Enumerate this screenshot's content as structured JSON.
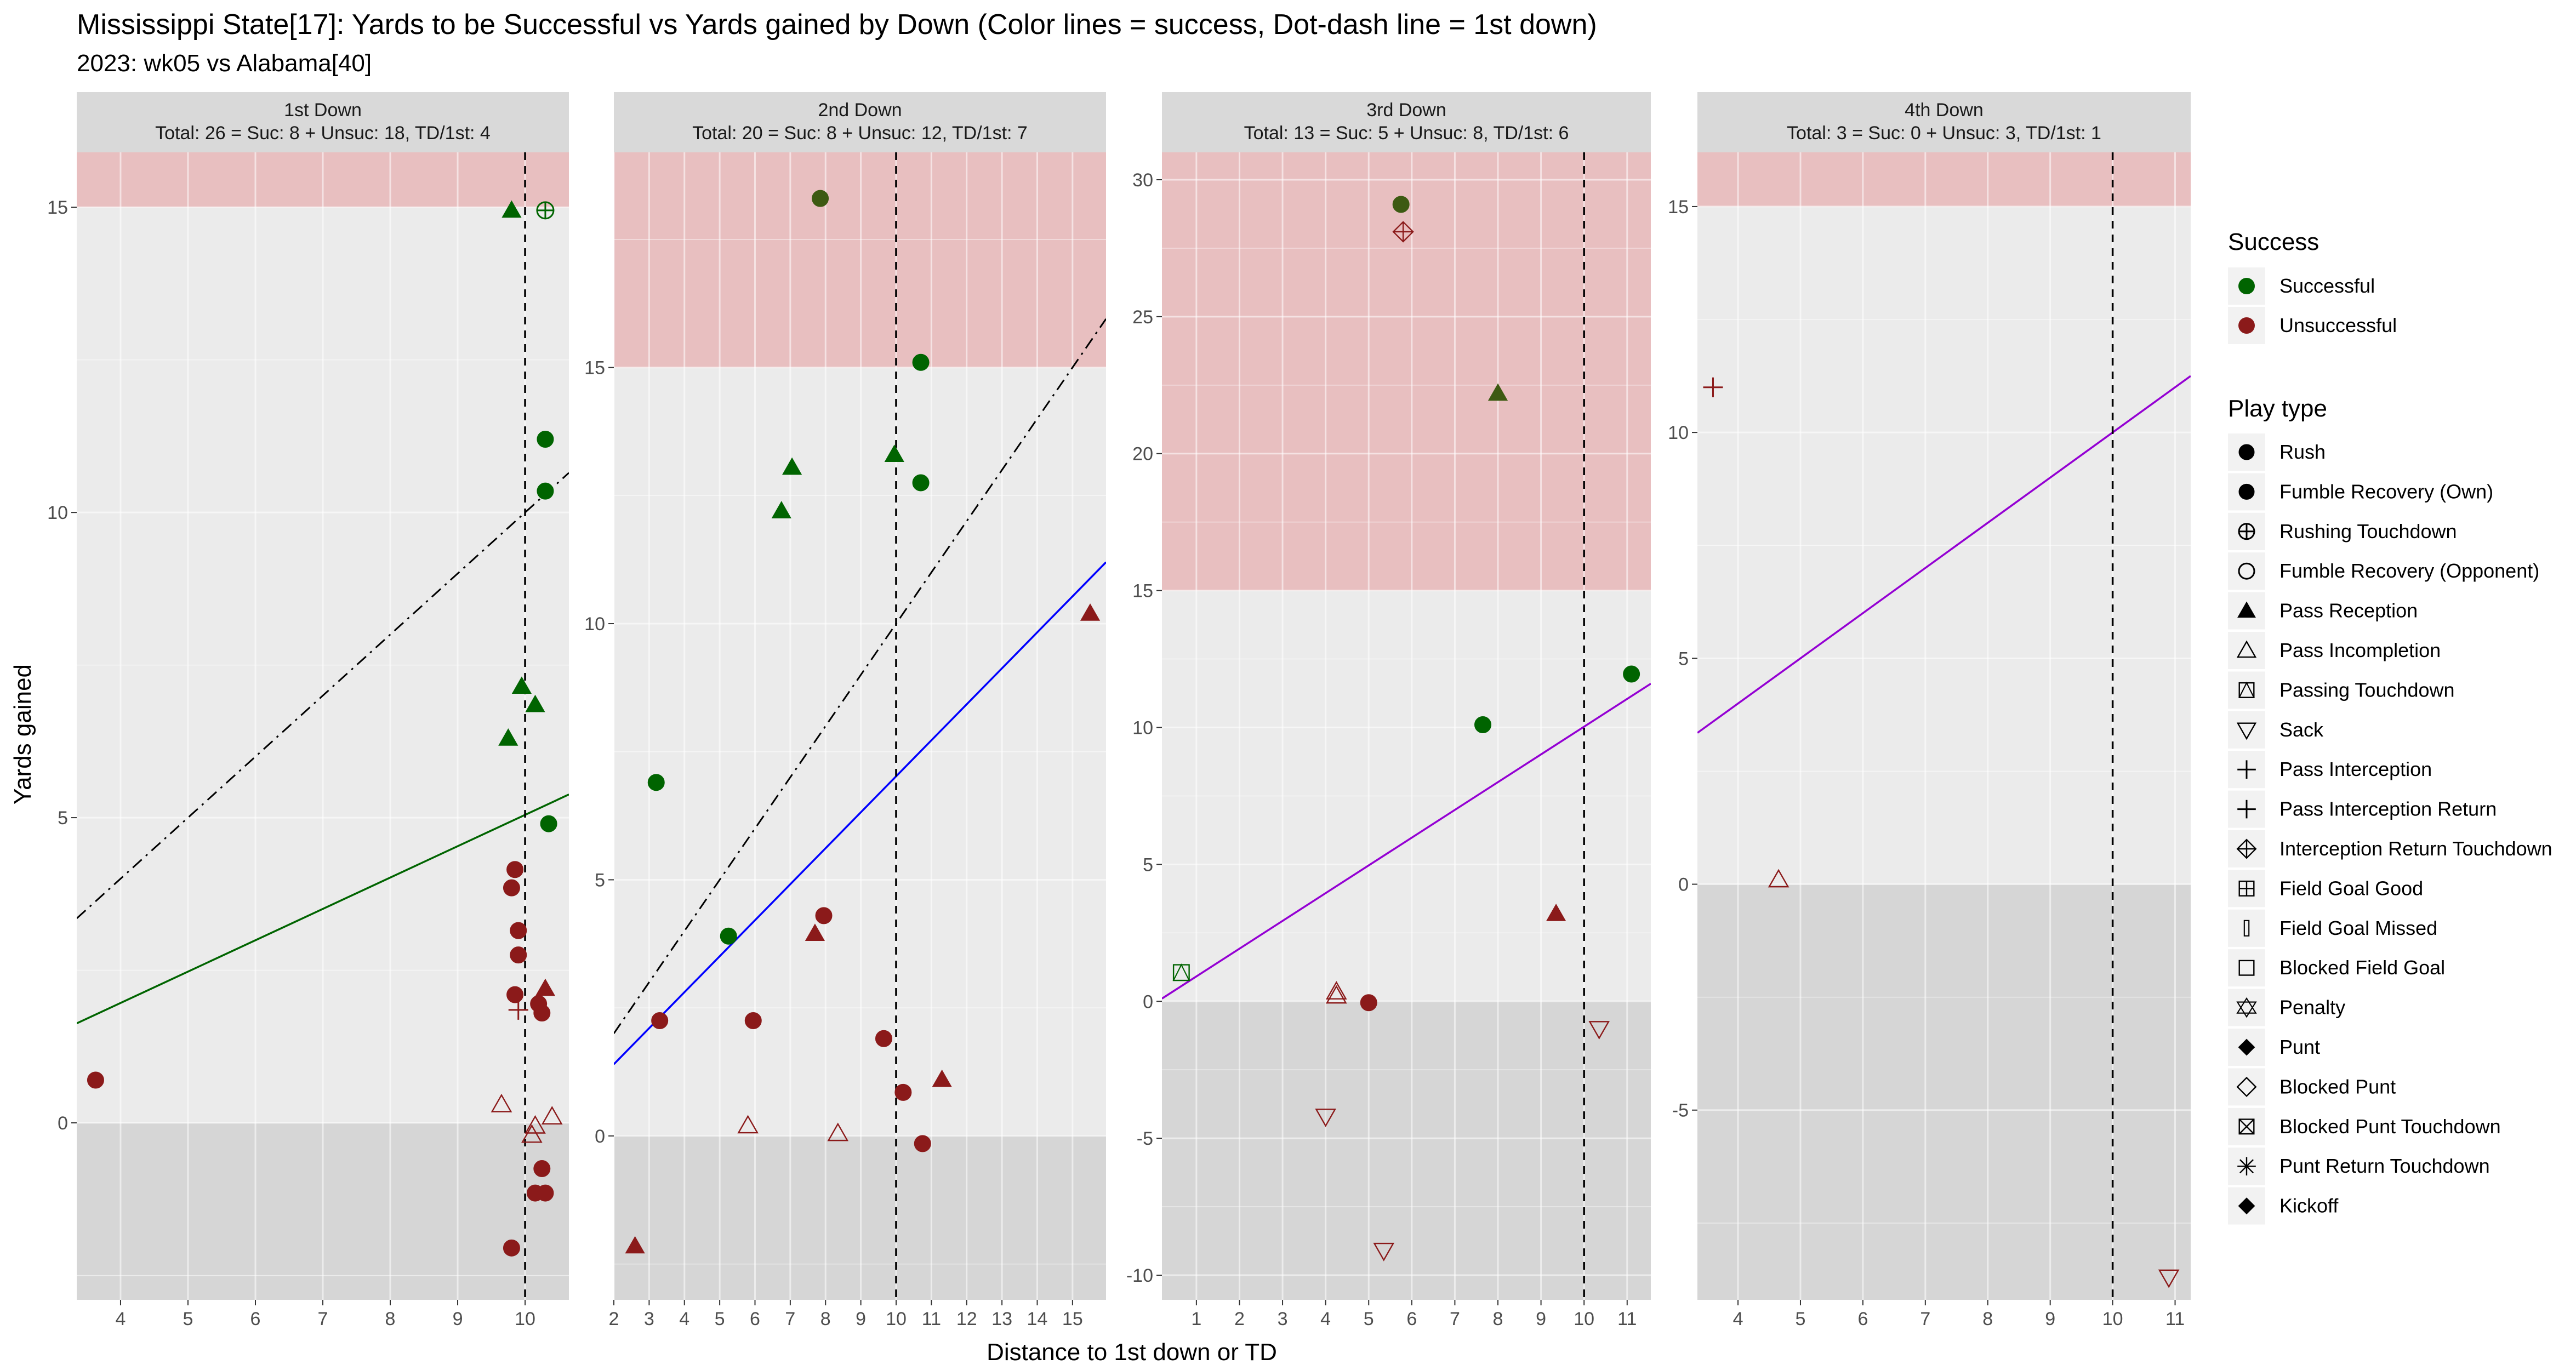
{
  "title": "Mississippi State[17]: Yards to be Successful vs Yards gained by Down  (Color lines = success, Dot-dash line = 1st down)",
  "subtitle": "2023: wk05 vs Alabama[40]",
  "xlabel": "Distance to 1st down or TD",
  "ylabel": "Yards gained",
  "colors": {
    "successful": "#006400",
    "unsuccessful": "#8b1a1a",
    "success_dark": "#3d5a12",
    "panel_bg": "#ebebeb",
    "strip_bg": "#d9d9d9",
    "red_band": "#e8bfc0",
    "gray_band": "#d6d6d6",
    "line_down1": "#006400",
    "line_down2": "#0000ff",
    "line_down34": "#9400d3"
  },
  "legend": {
    "success_title": "Success",
    "success_items": [
      {
        "label": "Successful",
        "color": "#006400"
      },
      {
        "label": "Unsuccessful",
        "color": "#8b1a1a"
      }
    ],
    "playtype_title": "Play type",
    "playtype_items": [
      {
        "label": "Rush",
        "shape": "circle-filled"
      },
      {
        "label": "Fumble Recovery (Own)",
        "shape": "circle-filled"
      },
      {
        "label": "Rushing Touchdown",
        "shape": "circle-plus"
      },
      {
        "label": "Fumble Recovery (Opponent)",
        "shape": "circle-open"
      },
      {
        "label": "Pass Reception",
        "shape": "triangle-filled"
      },
      {
        "label": "Pass Incompletion",
        "shape": "triangle-open"
      },
      {
        "label": "Passing Touchdown",
        "shape": "square-triangle"
      },
      {
        "label": "Sack",
        "shape": "triangle-down-open"
      },
      {
        "label": "Pass Interception",
        "shape": "plus"
      },
      {
        "label": "Pass Interception Return",
        "shape": "plus"
      },
      {
        "label": "Interception Return Touchdown",
        "shape": "diamond-plus"
      },
      {
        "label": "Field Goal Good",
        "shape": "square-plus"
      },
      {
        "label": "Field Goal Missed",
        "shape": "rect-thin"
      },
      {
        "label": "Blocked Field Goal",
        "shape": "square-open"
      },
      {
        "label": "Penalty",
        "shape": "star-david"
      },
      {
        "label": "Punt",
        "shape": "diamond-filled"
      },
      {
        "label": "Blocked Punt",
        "shape": "diamond-open"
      },
      {
        "label": "Blocked Punt Touchdown",
        "shape": "square-x"
      },
      {
        "label": "Punt Return Touchdown",
        "shape": "asterisk"
      },
      {
        "label": "Kickoff",
        "shape": "diamond-filled"
      }
    ]
  },
  "chart_data": [
    {
      "type": "scatter",
      "panel": "1st Down",
      "strip_line1": "1st Down",
      "strip_line2": "Total: 26 = Suc: 8 + Unsuc: 18, TD/1st: 4",
      "x_ticks": [
        4,
        5,
        6,
        7,
        8,
        9,
        10
      ],
      "x_tick_labels": [
        "4",
        "5",
        "6",
        "7",
        "8",
        "9",
        "10"
      ],
      "y_ticks": [
        0,
        5,
        10,
        15
      ],
      "xlim": [
        3.35,
        10.65
      ],
      "ylim": [
        -2.9,
        15.9
      ],
      "red_band": [
        15,
        15.9
      ],
      "gray_band": [
        -2.9,
        0
      ],
      "vline": 10,
      "success_line": {
        "color": "line_down1",
        "x1": 3.35,
        "y1": 1.63,
        "x2": 10.65,
        "y2": 5.38
      },
      "first_down_line": {
        "x1": 3.35,
        "y1": 3.35,
        "x2": 10.65,
        "y2": 10.65
      },
      "points": [
        {
          "x": 3.63,
          "y": 0.7,
          "outcome": "unsuccessful",
          "shape": "circle-filled"
        },
        {
          "x": 9.8,
          "y": 14.95,
          "outcome": "successful",
          "shape": "triangle-filled"
        },
        {
          "x": 10.3,
          "y": 14.95,
          "outcome": "successful",
          "shape": "circle-plus"
        },
        {
          "x": 10.3,
          "y": 11.2,
          "outcome": "successful",
          "shape": "circle-filled"
        },
        {
          "x": 10.3,
          "y": 10.35,
          "outcome": "successful",
          "shape": "circle-filled"
        },
        {
          "x": 9.95,
          "y": 7.15,
          "outcome": "successful",
          "shape": "triangle-filled"
        },
        {
          "x": 10.15,
          "y": 6.85,
          "outcome": "successful",
          "shape": "triangle-filled"
        },
        {
          "x": 9.75,
          "y": 6.3,
          "outcome": "successful",
          "shape": "triangle-filled"
        },
        {
          "x": 10.35,
          "y": 4.9,
          "outcome": "successful",
          "shape": "circle-filled"
        },
        {
          "x": 9.85,
          "y": 4.15,
          "outcome": "unsuccessful",
          "shape": "circle-filled"
        },
        {
          "x": 9.8,
          "y": 3.85,
          "outcome": "unsuccessful",
          "shape": "circle-filled"
        },
        {
          "x": 9.9,
          "y": 3.15,
          "outcome": "unsuccessful",
          "shape": "circle-filled"
        },
        {
          "x": 9.9,
          "y": 2.75,
          "outcome": "unsuccessful",
          "shape": "circle-filled"
        },
        {
          "x": 10.3,
          "y": 2.2,
          "outcome": "unsuccessful",
          "shape": "triangle-filled"
        },
        {
          "x": 9.85,
          "y": 2.1,
          "outcome": "unsuccessful",
          "shape": "circle-filled"
        },
        {
          "x": 10.2,
          "y": 1.95,
          "outcome": "unsuccessful",
          "shape": "circle-filled"
        },
        {
          "x": 10.25,
          "y": 1.8,
          "outcome": "unsuccessful",
          "shape": "circle-filled"
        },
        {
          "x": 9.9,
          "y": 1.85,
          "outcome": "unsuccessful",
          "shape": "plus"
        },
        {
          "x": 9.65,
          "y": 0.3,
          "outcome": "unsuccessful",
          "shape": "triangle-open"
        },
        {
          "x": 10.4,
          "y": 0.1,
          "outcome": "unsuccessful",
          "shape": "triangle-open"
        },
        {
          "x": 10.15,
          "y": -0.05,
          "outcome": "unsuccessful",
          "shape": "triangle-open"
        },
        {
          "x": 10.1,
          "y": -0.2,
          "outcome": "unsuccessful",
          "shape": "triangle-open"
        },
        {
          "x": 10.25,
          "y": -0.75,
          "outcome": "unsuccessful",
          "shape": "circle-filled"
        },
        {
          "x": 10.15,
          "y": -1.15,
          "outcome": "unsuccessful",
          "shape": "circle-filled"
        },
        {
          "x": 10.3,
          "y": -1.15,
          "outcome": "unsuccessful",
          "shape": "circle-filled"
        },
        {
          "x": 9.8,
          "y": -2.05,
          "outcome": "unsuccessful",
          "shape": "circle-filled"
        }
      ]
    },
    {
      "type": "scatter",
      "panel": "2nd Down",
      "strip_line1": "2nd Down",
      "strip_line2": "Total: 20 = Suc: 8 + Unsuc: 12, TD/1st: 7",
      "x_ticks": [
        2,
        3,
        4,
        5,
        6,
        7,
        8,
        9,
        10,
        11,
        12,
        13,
        14,
        15
      ],
      "x_tick_labels": [
        "2",
        "3",
        "4",
        "5",
        "6",
        "7",
        "8",
        "9",
        "10",
        "11",
        "12",
        "13",
        "14",
        "15"
      ],
      "y_ticks": [
        0,
        5,
        10,
        15
      ],
      "xlim": [
        2.0,
        15.95
      ],
      "ylim": [
        -3.2,
        19.2
      ],
      "red_band": [
        15,
        19.2
      ],
      "gray_band": [
        -3.2,
        0
      ],
      "vline": 10,
      "success_line": {
        "color": "line_down2",
        "x1": 2.0,
        "y1": 1.4,
        "x2": 15.95,
        "y2": 11.2
      },
      "first_down_line": {
        "x1": 2.0,
        "y1": 2.0,
        "x2": 15.95,
        "y2": 15.95
      },
      "points": [
        {
          "x": 7.85,
          "y": 18.3,
          "outcome": "success_dark",
          "shape": "circle-filled"
        },
        {
          "x": 10.7,
          "y": 15.1,
          "outcome": "successful",
          "shape": "circle-filled"
        },
        {
          "x": 9.95,
          "y": 13.3,
          "outcome": "successful",
          "shape": "triangle-filled"
        },
        {
          "x": 7.05,
          "y": 13.05,
          "outcome": "successful",
          "shape": "triangle-filled"
        },
        {
          "x": 10.7,
          "y": 12.75,
          "outcome": "successful",
          "shape": "circle-filled"
        },
        {
          "x": 6.75,
          "y": 12.2,
          "outcome": "successful",
          "shape": "triangle-filled"
        },
        {
          "x": 3.2,
          "y": 6.9,
          "outcome": "successful",
          "shape": "circle-filled"
        },
        {
          "x": 5.25,
          "y": 3.9,
          "outcome": "successful",
          "shape": "circle-filled"
        },
        {
          "x": 15.5,
          "y": 10.2,
          "outcome": "unsuccessful",
          "shape": "triangle-filled"
        },
        {
          "x": 7.95,
          "y": 4.3,
          "outcome": "unsuccessful",
          "shape": "circle-filled"
        },
        {
          "x": 7.7,
          "y": 3.95,
          "outcome": "unsuccessful",
          "shape": "triangle-filled"
        },
        {
          "x": 3.3,
          "y": 2.25,
          "outcome": "unsuccessful",
          "shape": "circle-filled"
        },
        {
          "x": 5.95,
          "y": 2.25,
          "outcome": "unsuccessful",
          "shape": "circle-filled"
        },
        {
          "x": 9.65,
          "y": 1.9,
          "outcome": "unsuccessful",
          "shape": "circle-filled"
        },
        {
          "x": 11.3,
          "y": 1.1,
          "outcome": "unsuccessful",
          "shape": "triangle-filled"
        },
        {
          "x": 10.2,
          "y": 0.85,
          "outcome": "unsuccessful",
          "shape": "circle-filled"
        },
        {
          "x": 5.8,
          "y": 0.2,
          "outcome": "unsuccessful",
          "shape": "triangle-open"
        },
        {
          "x": 8.35,
          "y": 0.05,
          "outcome": "unsuccessful",
          "shape": "triangle-open"
        },
        {
          "x": 10.75,
          "y": -0.15,
          "outcome": "unsuccessful",
          "shape": "circle-filled"
        },
        {
          "x": 2.6,
          "y": -2.15,
          "outcome": "unsuccessful",
          "shape": "triangle-filled"
        }
      ]
    },
    {
      "type": "scatter",
      "panel": "3rd Down",
      "strip_line1": "3rd Down",
      "strip_line2": "Total: 13 = Suc: 5 + Unsuc: 8, TD/1st: 6",
      "x_ticks": [
        1,
        2,
        3,
        4,
        5,
        6,
        7,
        8,
        9,
        10,
        11
      ],
      "x_tick_labels": [
        "1",
        "2",
        "3",
        "4",
        "5",
        "6",
        "7",
        "8",
        "9",
        "10",
        "11"
      ],
      "y_ticks": [
        -10,
        -5,
        0,
        5,
        10,
        15,
        20,
        25,
        30
      ],
      "xlim": [
        0.2,
        11.55
      ],
      "ylim": [
        -10.9,
        31.0
      ],
      "red_band": [
        15,
        31.0
      ],
      "gray_band": [
        -10.9,
        0
      ],
      "vline": 10,
      "success_line": {
        "color": "line_down34",
        "x1": 0.2,
        "y1": 0.1,
        "x2": 11.55,
        "y2": 11.6
      },
      "first_down_line": null,
      "points": [
        {
          "x": 5.75,
          "y": 29.1,
          "outcome": "success_dark",
          "shape": "circle-filled"
        },
        {
          "x": 5.8,
          "y": 28.1,
          "outcome": "unsuccessful",
          "shape": "diamond-plus"
        },
        {
          "x": 8.0,
          "y": 22.2,
          "outcome": "success_dark",
          "shape": "triangle-filled"
        },
        {
          "x": 11.1,
          "y": 11.95,
          "outcome": "successful",
          "shape": "circle-filled"
        },
        {
          "x": 7.65,
          "y": 10.1,
          "outcome": "successful",
          "shape": "circle-filled"
        },
        {
          "x": 0.65,
          "y": 1.05,
          "outcome": "successful",
          "shape": "square-triangle"
        },
        {
          "x": 9.35,
          "y": 3.2,
          "outcome": "unsuccessful",
          "shape": "triangle-filled"
        },
        {
          "x": 4.25,
          "y": 0.35,
          "outcome": "unsuccessful",
          "shape": "triangle-open"
        },
        {
          "x": 4.25,
          "y": 0.2,
          "outcome": "unsuccessful",
          "shape": "triangle-open"
        },
        {
          "x": 5.0,
          "y": -0.05,
          "outcome": "unsuccessful",
          "shape": "circle-filled"
        },
        {
          "x": 10.35,
          "y": -1.0,
          "outcome": "unsuccessful",
          "shape": "triangle-down-open"
        },
        {
          "x": 4.0,
          "y": -4.2,
          "outcome": "unsuccessful",
          "shape": "triangle-down-open"
        },
        {
          "x": 5.35,
          "y": -9.1,
          "outcome": "unsuccessful",
          "shape": "triangle-down-open"
        }
      ]
    },
    {
      "type": "scatter",
      "panel": "4th Down",
      "strip_line1": "4th Down",
      "strip_line2": "Total: 3 = Suc: 0 + Unsuc: 3, TD/1st: 1",
      "x_ticks": [
        4,
        5,
        6,
        7,
        8,
        9,
        10,
        11
      ],
      "x_tick_labels": [
        "4",
        "5",
        "6",
        "7",
        "8",
        "9",
        "10",
        "11"
      ],
      "y_ticks": [
        -5,
        0,
        5,
        10,
        15
      ],
      "xlim": [
        3.35,
        11.25
      ],
      "ylim": [
        -9.2,
        16.2
      ],
      "red_band": [
        15,
        16.2
      ],
      "gray_band": [
        -9.2,
        0
      ],
      "vline": 10,
      "success_line": {
        "color": "line_down34",
        "x1": 3.35,
        "y1": 3.35,
        "x2": 11.25,
        "y2": 11.25
      },
      "first_down_line": null,
      "points": [
        {
          "x": 3.6,
          "y": 11.0,
          "outcome": "unsuccessful",
          "shape": "plus"
        },
        {
          "x": 4.65,
          "y": 0.1,
          "outcome": "unsuccessful",
          "shape": "triangle-open"
        },
        {
          "x": 10.9,
          "y": -8.7,
          "outcome": "unsuccessful",
          "shape": "triangle-down-open"
        }
      ]
    }
  ]
}
